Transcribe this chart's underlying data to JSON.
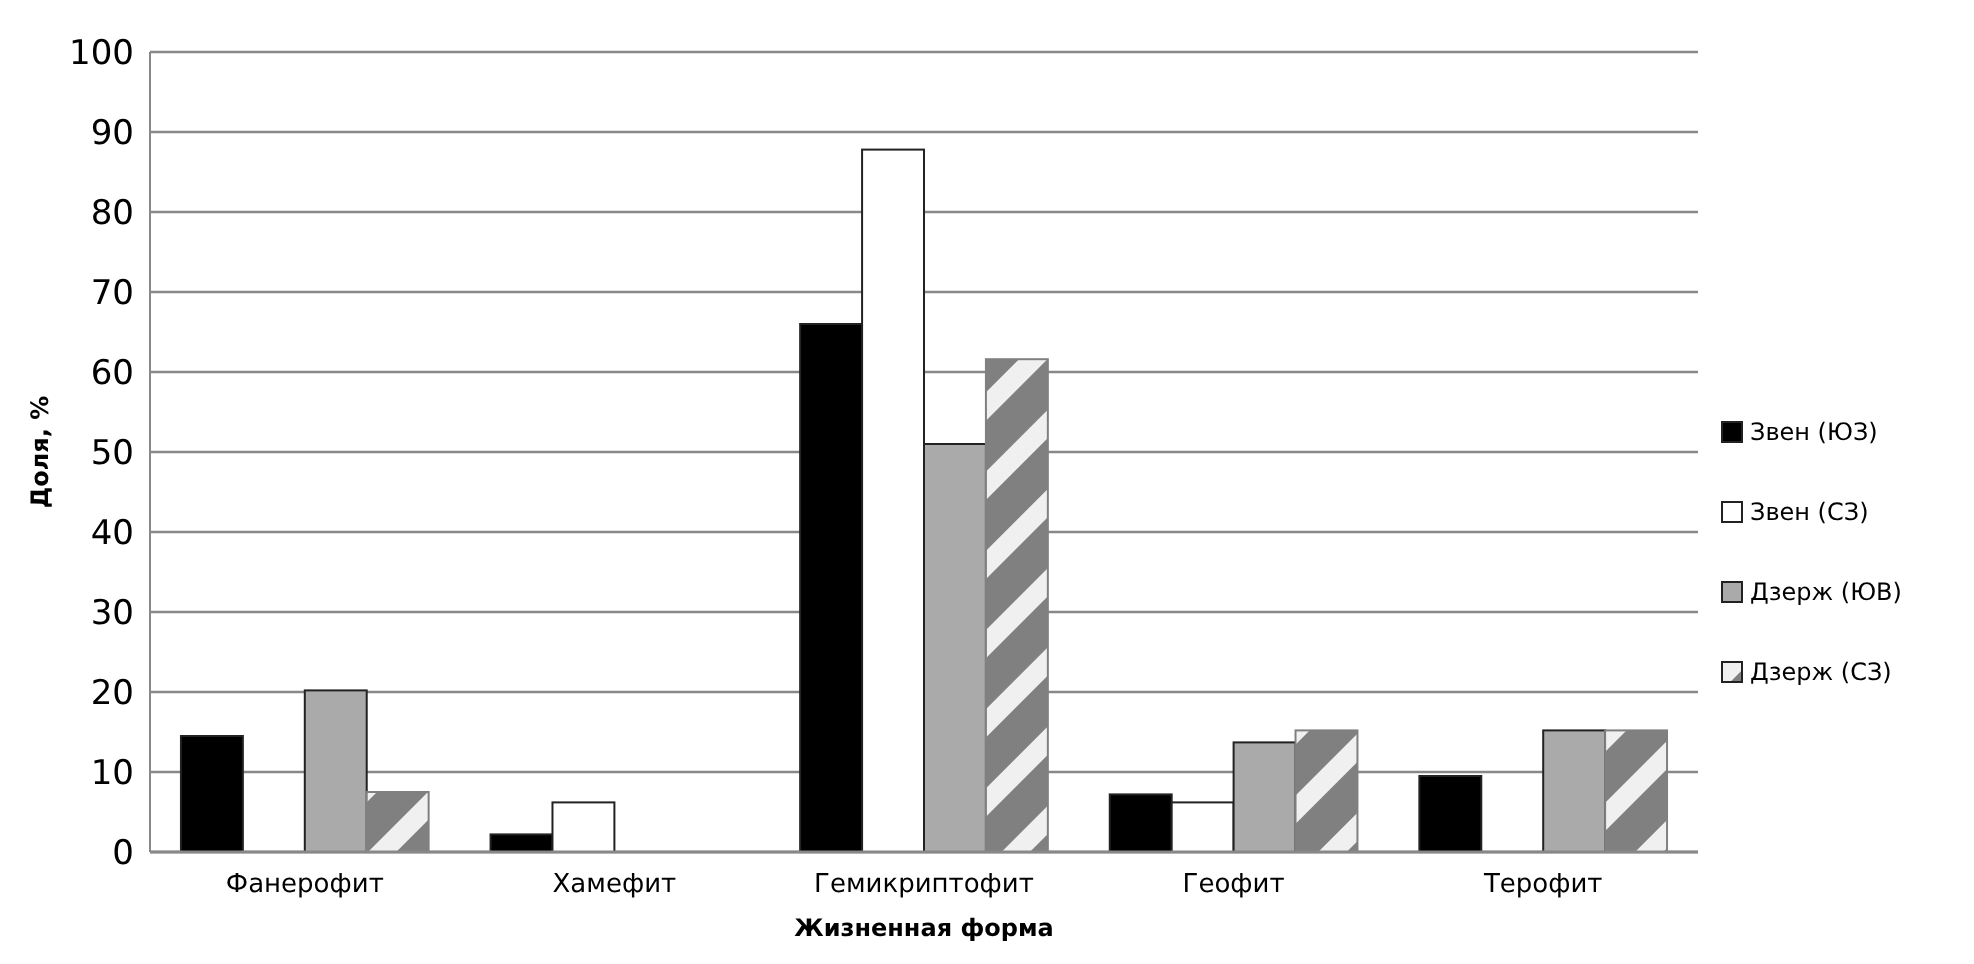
{
  "chart_data": {
    "type": "bar",
    "xlabel": "Жизненная форма",
    "ylabel": "Доля, %",
    "categories": [
      "Фанерофит",
      "Хамефит",
      "Гемикриптофит",
      "Геофит",
      "Терофит"
    ],
    "series": [
      {
        "name": "Звен (ЮЗ)",
        "color": "#000000",
        "values": [
          14.5,
          2.2,
          66,
          7.2,
          9.5
        ]
      },
      {
        "name": "Звен (СЗ)",
        "color": "#ffffff",
        "values": [
          0,
          6.2,
          87.8,
          6.2,
          0
        ]
      },
      {
        "name": "Дзерж (ЮВ)",
        "color": "#aaaaaa",
        "values": [
          20.2,
          0,
          51,
          13.7,
          15.2
        ]
      },
      {
        "name": "Дзерж (СЗ)",
        "color": "#808080",
        "values": [
          7.5,
          0,
          61.6,
          15.2,
          15.2
        ]
      }
    ],
    "ylim": [
      0,
      100
    ],
    "yticks": [
      0,
      10,
      20,
      30,
      40,
      50,
      60,
      70,
      80,
      90,
      100
    ],
    "grid": "y",
    "legend": "right"
  }
}
